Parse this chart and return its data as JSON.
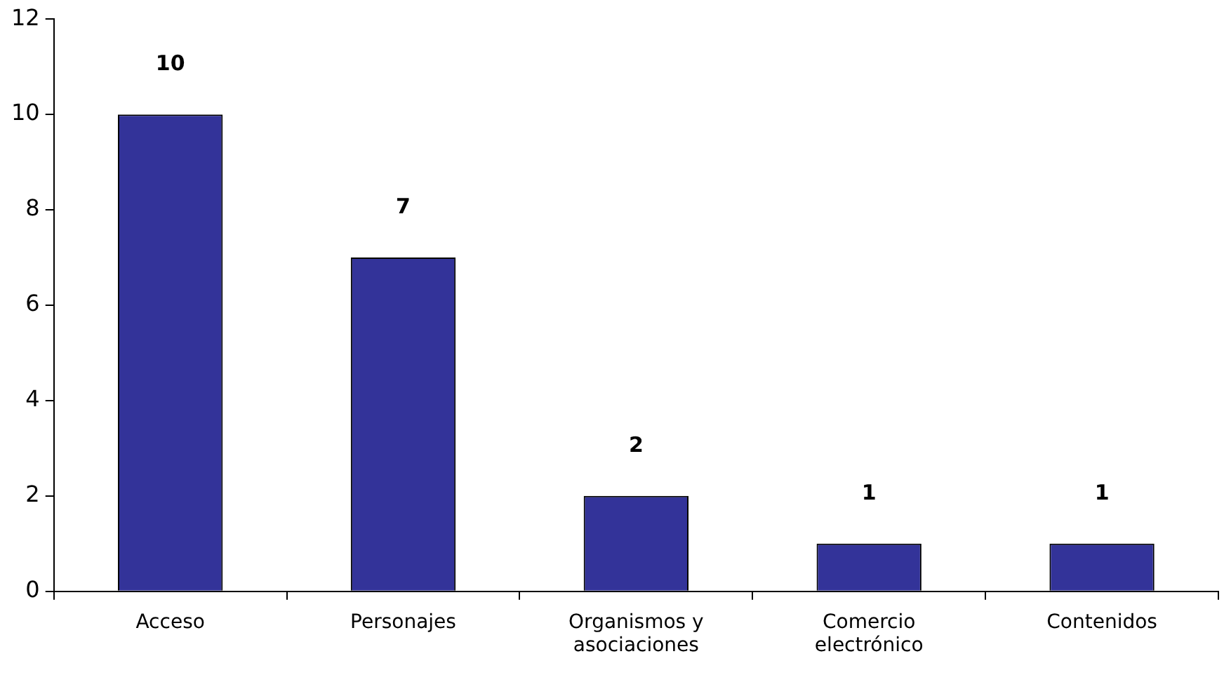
{
  "chart_data": {
    "type": "bar",
    "categories": [
      "Acceso",
      "Personajes",
      "Organismos y asociaciones",
      "Comercio electrónico",
      "Contenidos"
    ],
    "values": [
      10,
      7,
      2,
      1,
      1
    ],
    "color": "#333399",
    "ylim": [
      0,
      12
    ],
    "yticks": [
      0,
      2,
      4,
      6,
      8,
      10,
      12
    ],
    "data_labels": true
  }
}
